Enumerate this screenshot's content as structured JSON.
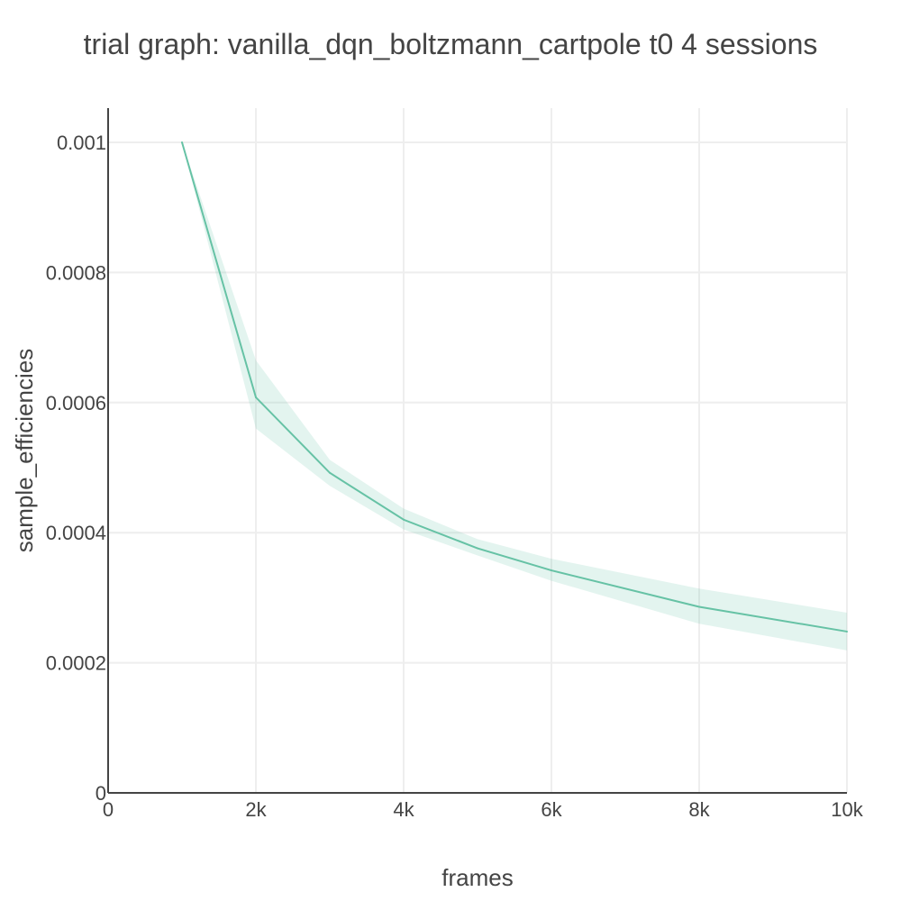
{
  "chart_data": {
    "type": "line",
    "title": "trial graph: vanilla_dqn_boltzmann_cartpole t0 4 sessions",
    "xlabel": "frames",
    "ylabel": "sample_efficiencies",
    "xlim": [
      0,
      10000
    ],
    "ylim": [
      0,
      0.001
    ],
    "grid": true,
    "x_ticks": [
      {
        "value": 0,
        "label": "0"
      },
      {
        "value": 2000,
        "label": "2k"
      },
      {
        "value": 4000,
        "label": "4k"
      },
      {
        "value": 6000,
        "label": "6k"
      },
      {
        "value": 8000,
        "label": "8k"
      },
      {
        "value": 10000,
        "label": "10k"
      }
    ],
    "y_ticks": [
      {
        "value": 0,
        "label": "0"
      },
      {
        "value": 0.0002,
        "label": "0.0002"
      },
      {
        "value": 0.0004,
        "label": "0.0004"
      },
      {
        "value": 0.0006,
        "label": "0.0006"
      },
      {
        "value": 0.0008,
        "label": "0.0008"
      },
      {
        "value": 0.001,
        "label": "0.001"
      }
    ],
    "series": [
      {
        "color": "#66c2a5",
        "band_color": "rgba(102,194,165,0.18)",
        "x": [
          1000,
          2000,
          3000,
          4000,
          5000,
          6000,
          8000,
          10000
        ],
        "y": [
          0.001,
          0.000608,
          0.000492,
          0.00042,
          0.000376,
          0.000342,
          0.000286,
          0.000248
        ],
        "upper": [
          0.001,
          0.000665,
          0.000512,
          0.000437,
          0.00039,
          0.00036,
          0.000314,
          0.000277
        ],
        "lower": [
          0.001,
          0.00056,
          0.000472,
          0.000405,
          0.000365,
          0.000326,
          0.00026,
          0.000219
        ]
      }
    ]
  }
}
